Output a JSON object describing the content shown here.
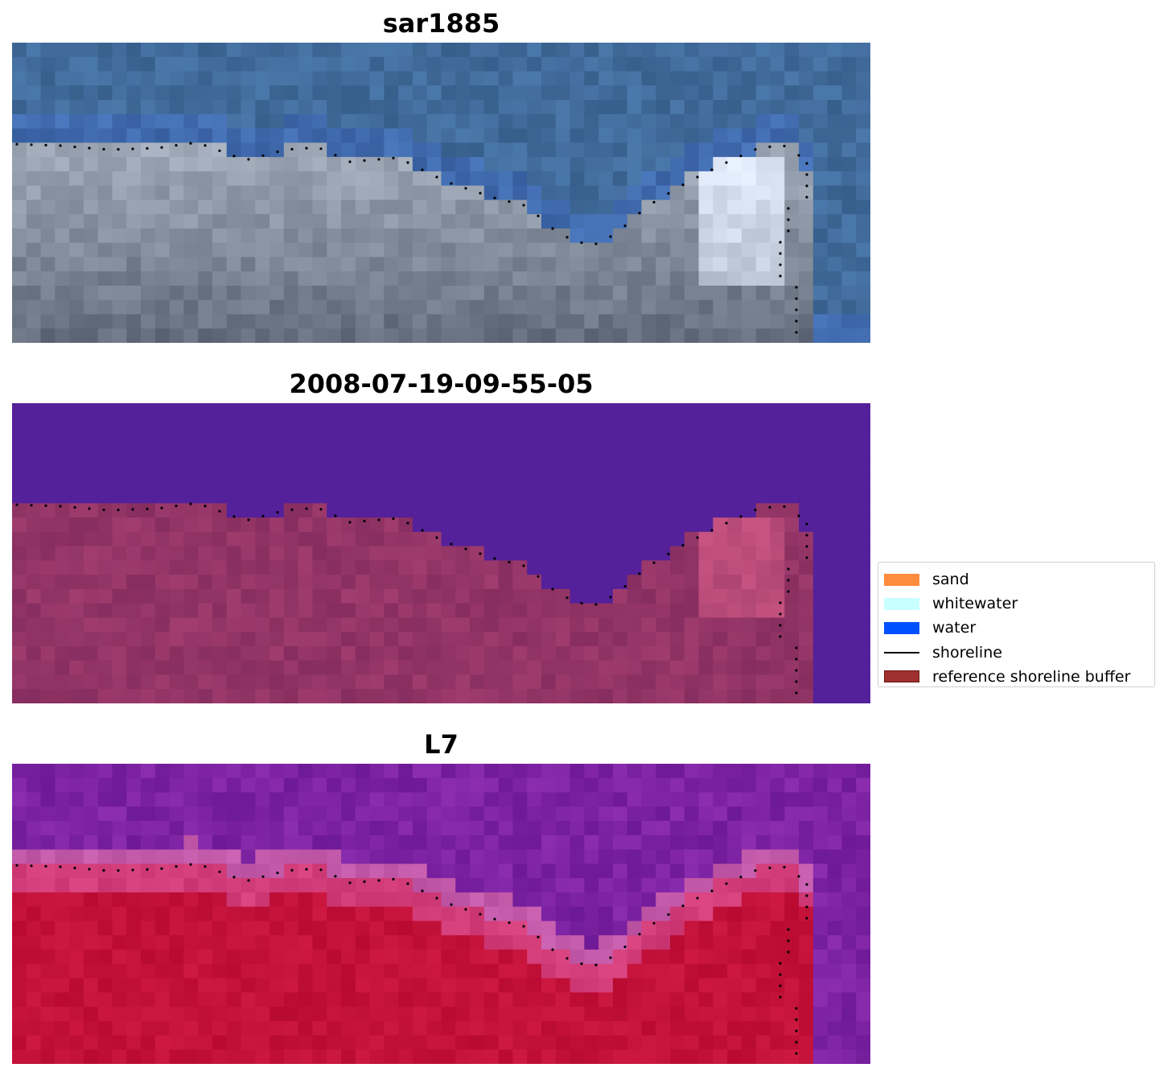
{
  "panels": [
    {
      "title": "sar1885",
      "style": "rgb"
    },
    {
      "title": "2008-07-19-09-55-05",
      "style": "classified"
    },
    {
      "title": "L7",
      "style": "falsecolor"
    }
  ],
  "legend": {
    "items": [
      {
        "label": "sand",
        "color": "#ff8c3c",
        "kind": "patch"
      },
      {
        "label": "whitewater",
        "color": "#c8ffff",
        "kind": "patch"
      },
      {
        "label": "water",
        "color": "#0050ff",
        "kind": "patch"
      },
      {
        "label": "shoreline",
        "color": "#000000",
        "kind": "line"
      },
      {
        "label": "reference shoreline buffer",
        "color": "#a0302f",
        "kind": "patch"
      }
    ]
  }
}
